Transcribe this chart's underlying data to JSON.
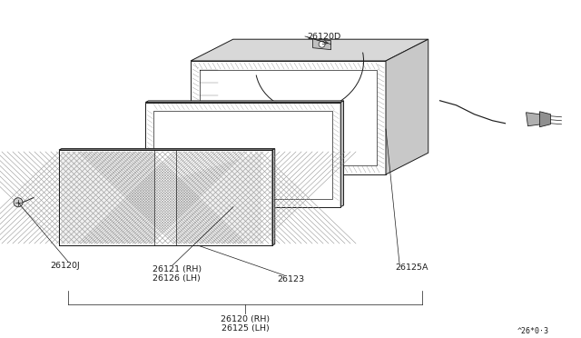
{
  "background_color": "#ffffff",
  "line_color": "#1a1a1a",
  "fig_width": 6.4,
  "fig_height": 3.72,
  "dpi": 100,
  "part_ref": "^26*0·3",
  "label_26120D": "26120D",
  "label_26120J": "26120J",
  "label_26121": "26121 (RH)",
  "label_26126": "26126 (LH)",
  "label_26123": "26123",
  "label_26125A": "26125A",
  "label_26120RH": "26120 (RH)",
  "label_26125LH": "26125 (LH)"
}
